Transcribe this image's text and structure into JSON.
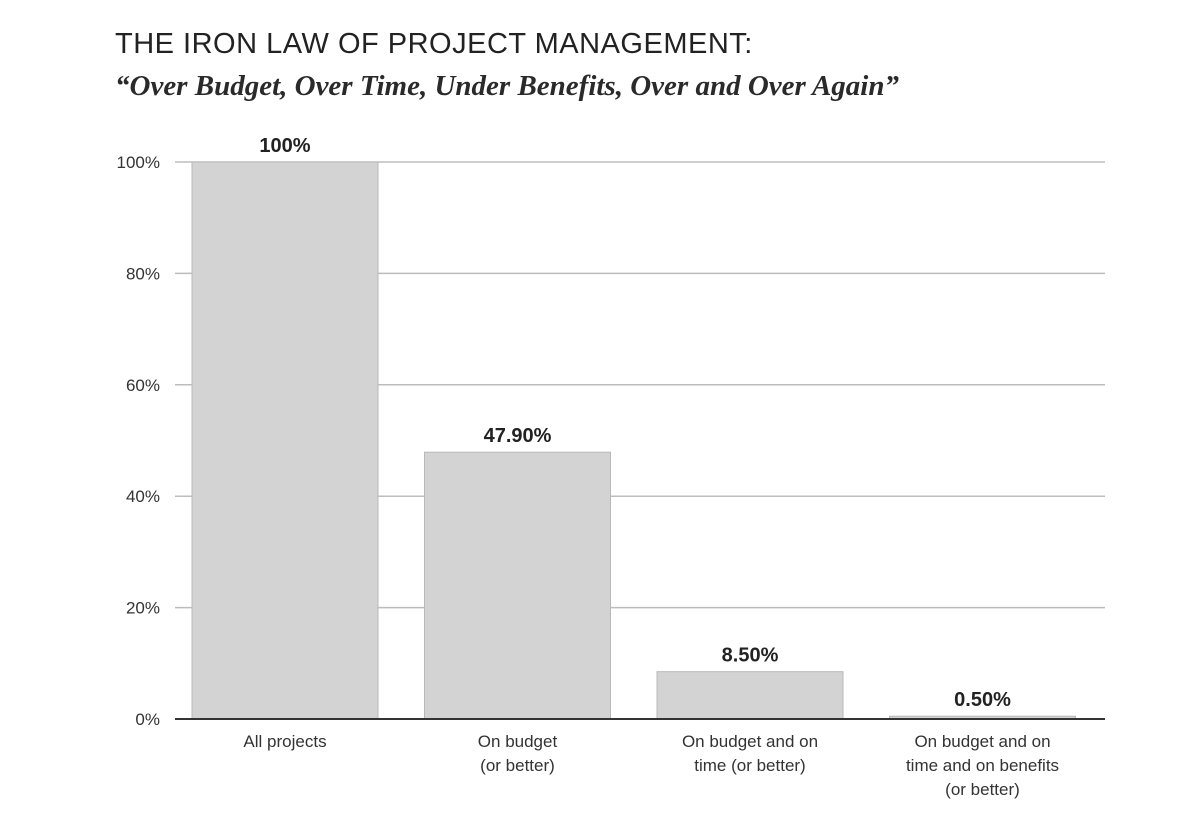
{
  "chart_data": {
    "type": "bar",
    "title": "THE IRON LAW OF PROJECT MANAGEMENT:",
    "subtitle": "“Over Budget, Over Time, Under Benefits, Over and Over Again”",
    "categories": [
      [
        "All projects"
      ],
      [
        "On budget",
        "(or better)"
      ],
      [
        "On budget and on",
        "time (or better)"
      ],
      [
        "On budget and on",
        "time and on benefits",
        "(or better)"
      ]
    ],
    "values": [
      100,
      47.9,
      8.5,
      0.5
    ],
    "data_labels": [
      "100%",
      "47.90%",
      "8.50%",
      "0.50%"
    ],
    "y_ticks": [
      0,
      20,
      40,
      60,
      80,
      100
    ],
    "y_tick_labels": [
      "0%",
      "20%",
      "40%",
      "60%",
      "80%",
      "100%"
    ],
    "ylim": [
      0,
      100
    ],
    "grid": true,
    "legend": "none",
    "colors": {
      "bar_fill": "#d3d3d3",
      "bar_stroke": "#b9b9b9",
      "grid": "#bdbdbd",
      "axis": "#333333"
    }
  }
}
